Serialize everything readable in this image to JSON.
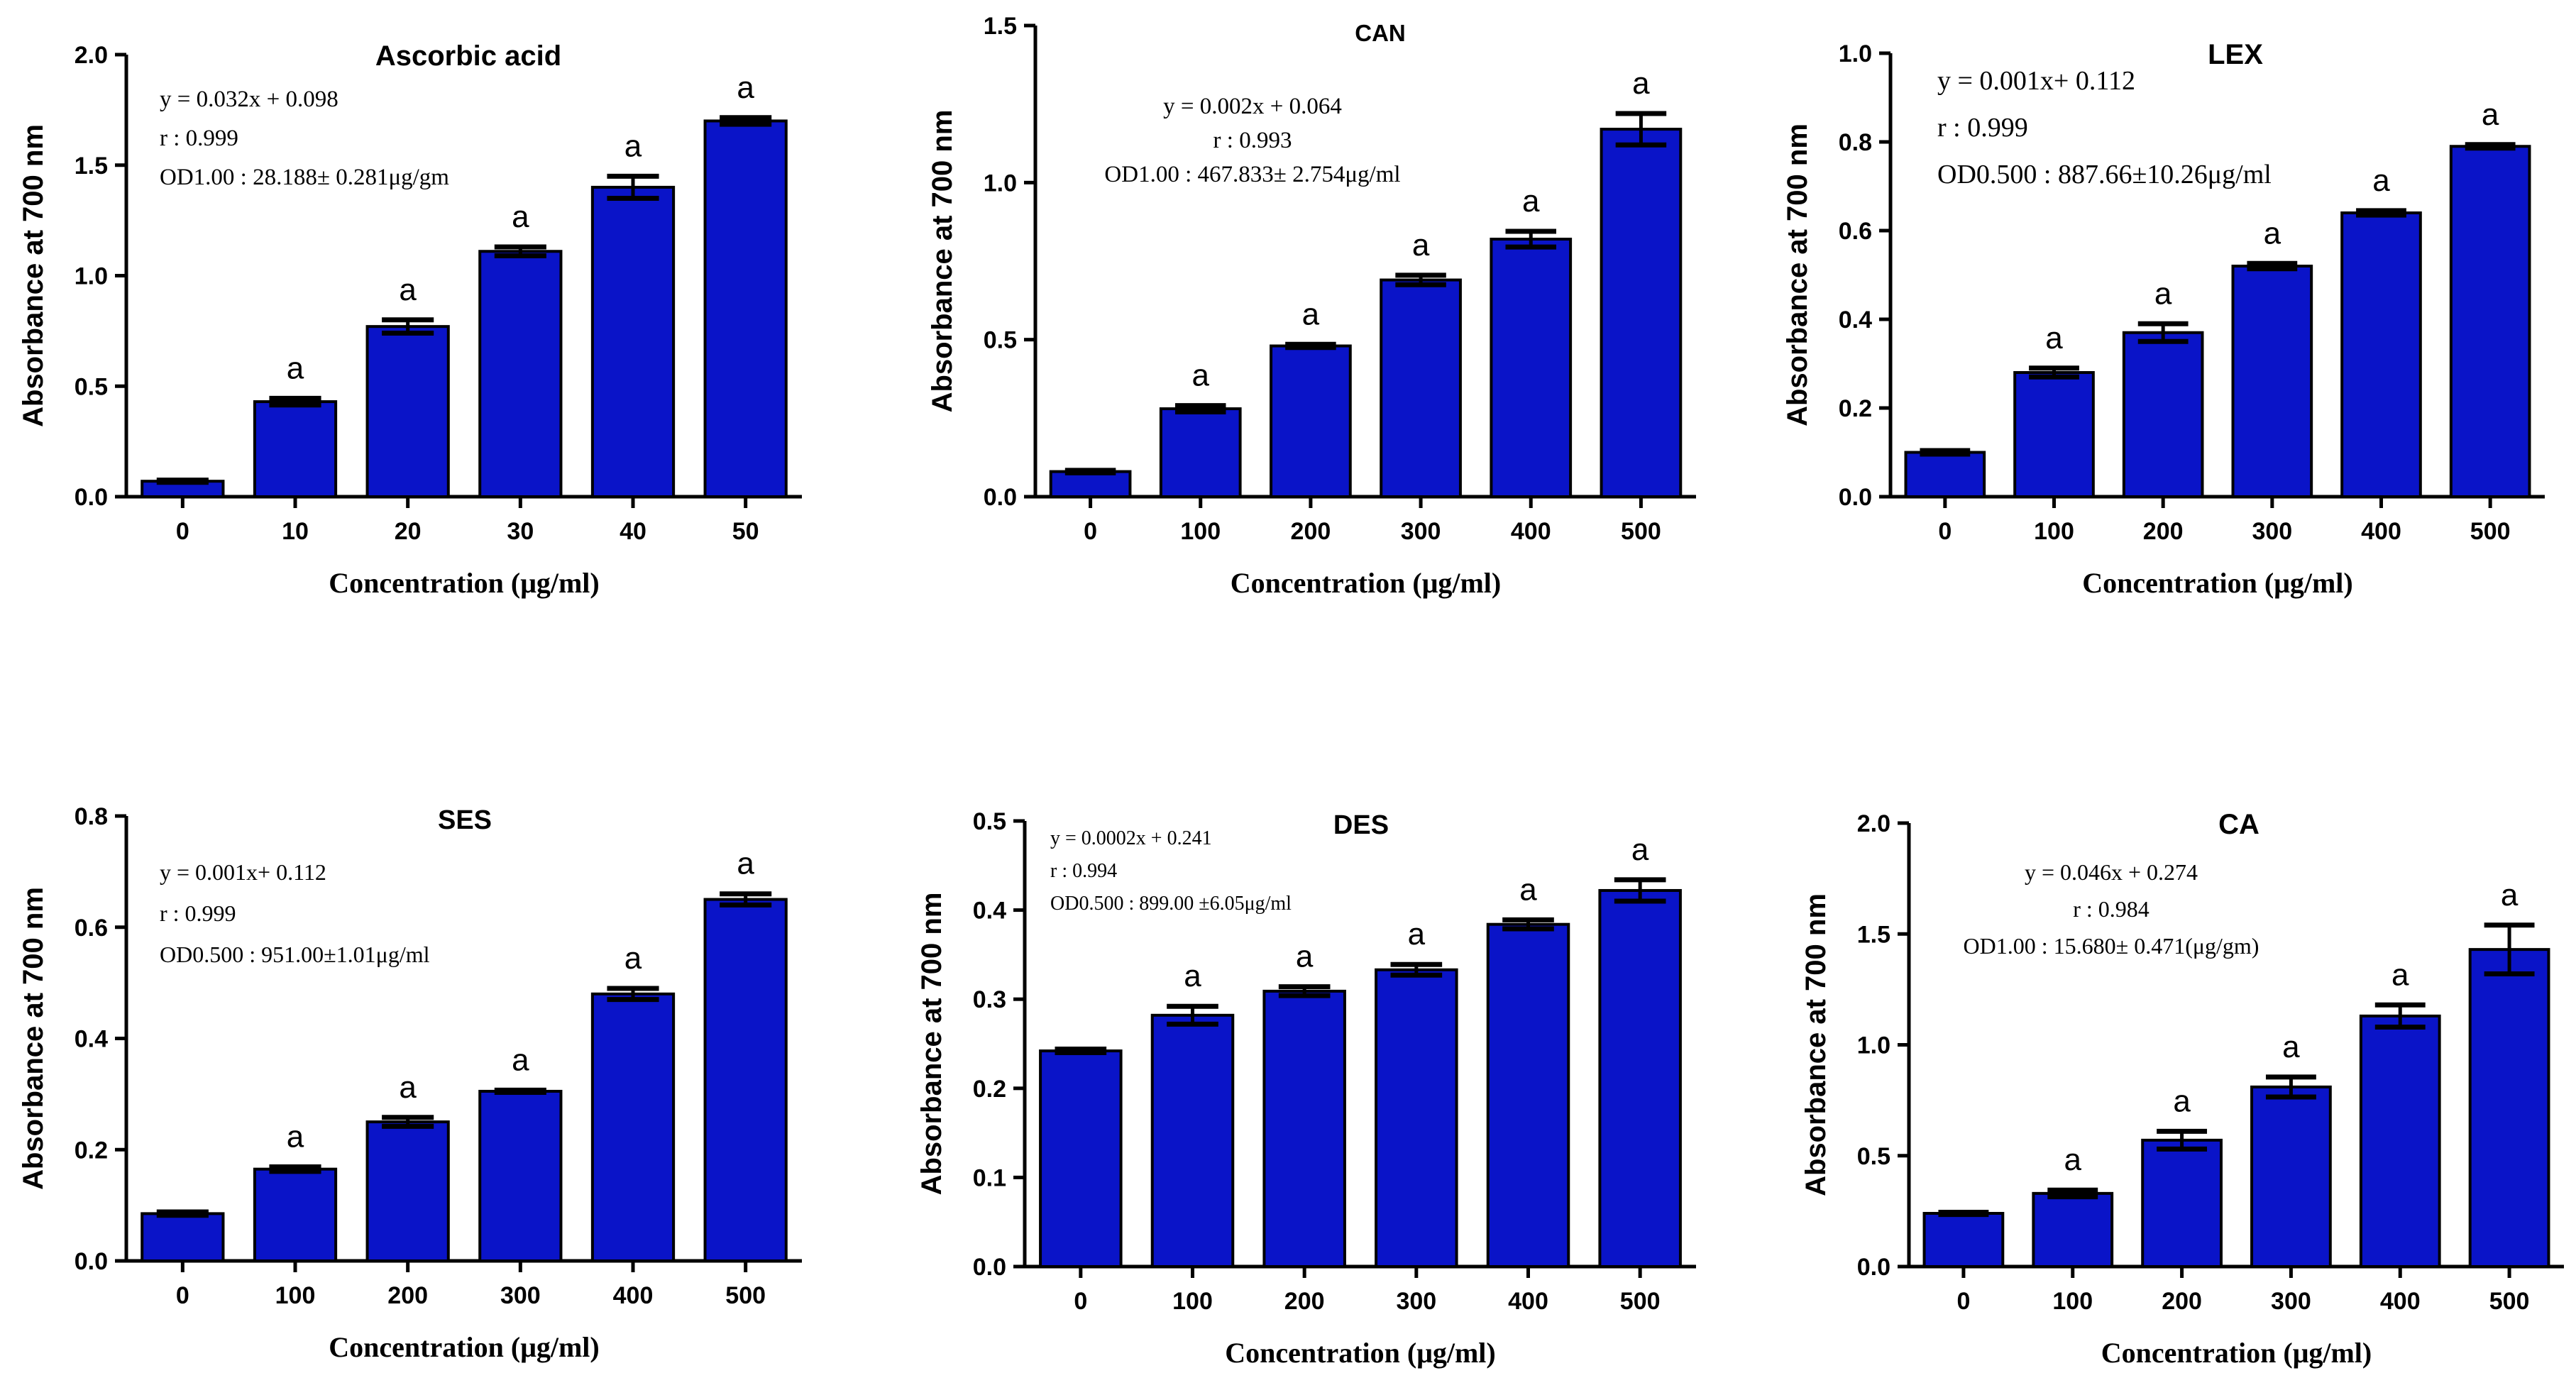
{
  "figure": {
    "bar_color": "#0a14c8",
    "edge_color": "#000000"
  },
  "chart_data": [
    {
      "type": "bar",
      "title": "Ascorbic acid",
      "xlabel": "Concentration (μg/ml)",
      "ylabel": "Absorbance at 700 nm",
      "categories": [
        "0",
        "10",
        "20",
        "30",
        "40",
        "50"
      ],
      "values": [
        0.07,
        0.43,
        0.77,
        1.11,
        1.4,
        1.7
      ],
      "errors": [
        0.005,
        0.015,
        0.03,
        0.02,
        0.05,
        0.015
      ],
      "labels": [
        "",
        "a",
        "a",
        "a",
        "a",
        "a"
      ],
      "ylim": [
        0,
        2.0
      ],
      "yticks": [
        "0.0",
        "0.5",
        "1.0",
        "1.5",
        "2.0"
      ],
      "annotation": [
        "y = 0.032x + 0.098",
        "r : 0.999",
        "OD1.00 : 28.188± 0.281μg/gm"
      ]
    },
    {
      "type": "bar",
      "title": "CAN",
      "xlabel": "Concentration (μg/ml)",
      "ylabel": "Absorbance at 700 nm",
      "categories": [
        "0",
        "100",
        "200",
        "300",
        "400",
        "500"
      ],
      "values": [
        0.08,
        0.28,
        0.48,
        0.69,
        0.82,
        1.17
      ],
      "errors": [
        0.004,
        0.01,
        0.005,
        0.015,
        0.025,
        0.05
      ],
      "labels": [
        "",
        "a",
        "a",
        "a",
        "a",
        "a"
      ],
      "ylim": [
        0,
        1.5
      ],
      "yticks": [
        "0.0",
        "0.5",
        "1.0",
        "1.5"
      ],
      "annotation": [
        "y = 0.002x + 0.064",
        "r : 0.993",
        "OD1.00 : 467.833± 2.754μg/ml"
      ]
    },
    {
      "type": "bar",
      "title": "LEX",
      "xlabel": "Concentration (μg/ml)",
      "ylabel": "Absorbance at 700 nm",
      "categories": [
        "0",
        "100",
        "200",
        "300",
        "400",
        "500"
      ],
      "values": [
        0.1,
        0.28,
        0.37,
        0.52,
        0.64,
        0.79
      ],
      "errors": [
        0.004,
        0.01,
        0.02,
        0.006,
        0.005,
        0.004
      ],
      "labels": [
        "",
        "a",
        "a",
        "a",
        "a",
        "a"
      ],
      "ylim": [
        0,
        1.0
      ],
      "yticks": [
        "0.0",
        "0.2",
        "0.4",
        "0.6",
        "0.8",
        "1.0"
      ],
      "annotation": [
        "y = 0.001x+ 0.112",
        "r : 0.999",
        "OD0.500 : 887.66±10.26μg/ml"
      ]
    },
    {
      "type": "bar",
      "title": "SES",
      "xlabel": "Concentration (μg/ml)",
      "ylabel": "Absorbance at 700 nm",
      "categories": [
        "0",
        "100",
        "200",
        "300",
        "400",
        "500"
      ],
      "values": [
        0.085,
        0.165,
        0.25,
        0.305,
        0.48,
        0.65
      ],
      "errors": [
        0.003,
        0.004,
        0.008,
        0.002,
        0.01,
        0.01
      ],
      "labels": [
        "",
        "a",
        "a",
        "a",
        "a",
        "a"
      ],
      "ylim": [
        0,
        0.8
      ],
      "yticks": [
        "0.0",
        "0.2",
        "0.4",
        "0.6",
        "0.8"
      ],
      "annotation": [
        "y = 0.001x+ 0.112",
        "r : 0.999",
        "OD0.500 : 951.00±1.01μg/ml"
      ]
    },
    {
      "type": "bar",
      "title": "DES",
      "xlabel": "Concentration (μg/ml)",
      "ylabel": "Absorbance at 700 nm",
      "categories": [
        "0",
        "100",
        "200",
        "300",
        "400",
        "500"
      ],
      "values": [
        0.242,
        0.282,
        0.309,
        0.333,
        0.384,
        0.422
      ],
      "errors": [
        0.002,
        0.01,
        0.005,
        0.006,
        0.005,
        0.012
      ],
      "labels": [
        "",
        "a",
        "a",
        "a",
        "a",
        "a"
      ],
      "ylim": [
        0,
        0.5
      ],
      "yticks": [
        "0.0",
        "0.1",
        "0.2",
        "0.3",
        "0.4",
        "0.5"
      ],
      "annotation": [
        "y = 0.0002x + 0.241",
        "r : 0.994",
        "OD0.500 : 899.00 ±6.05μg/ml"
      ]
    },
    {
      "type": "bar",
      "title": "CA",
      "xlabel": "Concentration (μg/ml)",
      "ylabel": "Absorbance at 700 nm",
      "categories": [
        "0",
        "100",
        "200",
        "300",
        "400",
        "500"
      ],
      "values": [
        0.24,
        0.33,
        0.57,
        0.81,
        1.13,
        1.43
      ],
      "errors": [
        0.005,
        0.015,
        0.04,
        0.045,
        0.05,
        0.11
      ],
      "labels": [
        "",
        "a",
        "a",
        "a",
        "a",
        "a"
      ],
      "ylim": [
        0,
        2.0
      ],
      "yticks": [
        "0.0",
        "0.5",
        "1.0",
        "1.5",
        "2.0"
      ],
      "annotation": [
        "y = 0.046x + 0.274",
        "r : 0.984",
        "OD1.00 : 15.680± 0.471(μg/gm)"
      ]
    }
  ]
}
